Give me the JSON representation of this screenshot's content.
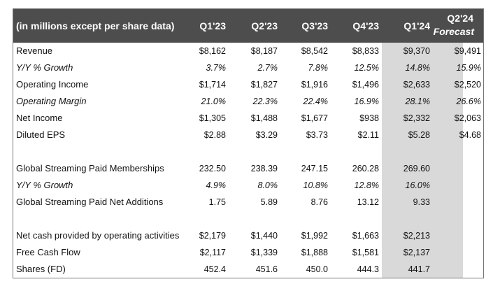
{
  "header": {
    "title": "(in millions except per share data)",
    "columns": [
      "Q1'23",
      "Q2'23",
      "Q3'23",
      "Q4'23",
      "Q1'24"
    ],
    "forecast_line1": "Q2'24",
    "forecast_line2": "Forecast"
  },
  "colors": {
    "header_bg": "#4d4d4d",
    "highlight": "#d9d9d9"
  },
  "sections": [
    {
      "rows": [
        {
          "label": "Revenue",
          "italic": false,
          "values": [
            "$8,162",
            "$8,187",
            "$8,542",
            "$8,833",
            "$9,370",
            "$9,491"
          ]
        },
        {
          "label": "Y/Y % Growth",
          "italic": true,
          "values": [
            "3.7%",
            "2.7%",
            "7.8%",
            "12.5%",
            "14.8%",
            "15.9%"
          ]
        },
        {
          "label": "Operating Income",
          "italic": false,
          "values": [
            "$1,714",
            "$1,827",
            "$1,916",
            "$1,496",
            "$2,633",
            "$2,520"
          ]
        },
        {
          "label": "Operating Margin",
          "italic": true,
          "values": [
            "21.0%",
            "22.3%",
            "22.4%",
            "16.9%",
            "28.1%",
            "26.6%"
          ]
        },
        {
          "label": "Net Income",
          "italic": false,
          "values": [
            "$1,305",
            "$1,488",
            "$1,677",
            "$938",
            "$2,332",
            "$2,063"
          ]
        },
        {
          "label": "Diluted EPS",
          "italic": false,
          "values": [
            "$2.88",
            "$3.29",
            "$3.73",
            "$2.11",
            "$5.28",
            "$4.68"
          ]
        }
      ]
    },
    {
      "rows": [
        {
          "label": "Global Streaming Paid Memberships",
          "italic": false,
          "values": [
            "232.50",
            "238.39",
            "247.15",
            "260.28",
            "269.60",
            ""
          ]
        },
        {
          "label": "Y/Y % Growth",
          "italic": true,
          "values": [
            "4.9%",
            "8.0%",
            "10.8%",
            "12.8%",
            "16.0%",
            ""
          ]
        },
        {
          "label": "Global Streaming Paid Net Additions",
          "italic": false,
          "values": [
            "1.75",
            "5.89",
            "8.76",
            "13.12",
            "9.33",
            ""
          ]
        }
      ]
    },
    {
      "rows": [
        {
          "label": "Net cash provided by operating activities",
          "italic": false,
          "values": [
            "$2,179",
            "$1,440",
            "$1,992",
            "$1,663",
            "$2,213",
            ""
          ]
        },
        {
          "label": "Free Cash Flow",
          "italic": false,
          "values": [
            "$2,117",
            "$1,339",
            "$1,888",
            "$1,581",
            "$2,137",
            ""
          ]
        },
        {
          "label": "Shares (FD)",
          "italic": false,
          "values": [
            "452.4",
            "451.6",
            "450.0",
            "444.3",
            "441.7",
            ""
          ]
        }
      ]
    }
  ]
}
